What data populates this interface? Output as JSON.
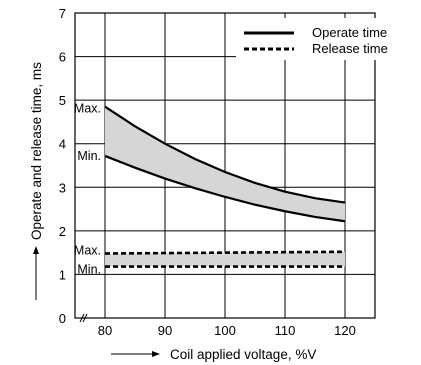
{
  "chart_data": {
    "type": "area",
    "title": "",
    "xlabel": "Coil applied voltage, %V",
    "ylabel": "Operate and release time, ms",
    "xlim": [
      75,
      125
    ],
    "ylim": [
      0,
      7
    ],
    "x_ticks": [
      80,
      90,
      100,
      110,
      120
    ],
    "y_ticks": [
      0,
      1,
      2,
      3,
      4,
      5,
      6,
      7
    ],
    "grid": true,
    "legend_position": "top-right",
    "series": [
      {
        "name": "Operate time",
        "style": "solid",
        "band_labels": [
          "Max.",
          "Min."
        ],
        "max": {
          "x": [
            80,
            85,
            90,
            95,
            100,
            105,
            110,
            115,
            120
          ],
          "y": [
            4.85,
            4.4,
            4.0,
            3.65,
            3.35,
            3.1,
            2.9,
            2.75,
            2.65
          ]
        },
        "min": {
          "x": [
            80,
            85,
            90,
            95,
            100,
            105,
            110,
            115,
            120
          ],
          "y": [
            3.72,
            3.45,
            3.2,
            2.98,
            2.78,
            2.6,
            2.45,
            2.32,
            2.22
          ]
        }
      },
      {
        "name": "Release time",
        "style": "dashed",
        "band_labels": [
          "Max.",
          "Min."
        ],
        "max": {
          "x": [
            80,
            90,
            100,
            110,
            120
          ],
          "y": [
            1.48,
            1.49,
            1.5,
            1.51,
            1.52
          ]
        },
        "min": {
          "x": [
            80,
            90,
            100,
            110,
            120
          ],
          "y": [
            1.18,
            1.18,
            1.18,
            1.18,
            1.18
          ]
        }
      }
    ],
    "colors": {
      "band_fill": "#d6d6d6",
      "line": "#000000"
    }
  }
}
